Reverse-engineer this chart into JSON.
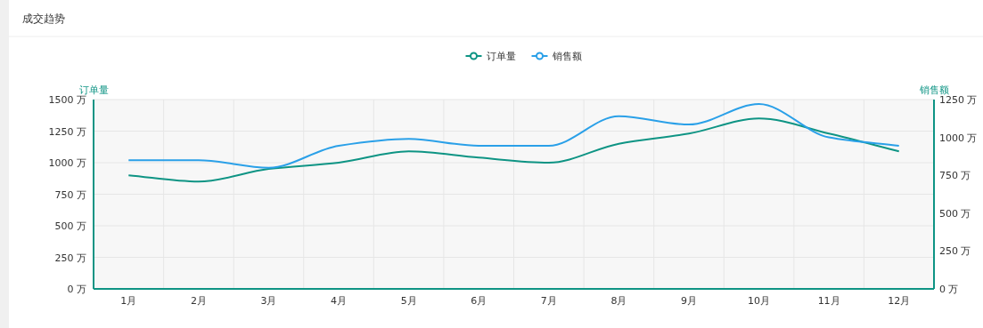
{
  "chart_data": {
    "type": "line",
    "title": "成交趋势",
    "categories": [
      "1月",
      "2月",
      "3月",
      "4月",
      "5月",
      "6月",
      "7月",
      "8月",
      "9月",
      "10月",
      "11月",
      "12月"
    ],
    "series": [
      {
        "name": "订单量",
        "color": "#0e9484",
        "values": [
          900,
          850,
          950,
          1000,
          1090,
          1040,
          1000,
          1150,
          1230,
          1350,
          1230,
          1090
        ]
      },
      {
        "name": "销售额",
        "color": "#2aa0e8",
        "axis": "y2",
        "values": [
          850,
          850,
          800,
          945,
          990,
          945,
          945,
          1140,
          1085,
          1220,
          1000,
          945
        ]
      }
    ],
    "ylabel": "订单量",
    "y2label": "销售额",
    "ylim": [
      0,
      1500
    ],
    "yticks": [
      {
        "value": 0,
        "label": "0 万"
      },
      {
        "value": 250,
        "label": "250 万"
      },
      {
        "value": 500,
        "label": "500 万"
      },
      {
        "value": 750,
        "label": "750 万"
      },
      {
        "value": 1000,
        "label": "1000 万"
      },
      {
        "value": 1250,
        "label": "1250 万"
      },
      {
        "value": 1500,
        "label": "1500 万"
      }
    ],
    "y2lim": [
      0,
      1250
    ],
    "y2ticks": [
      {
        "value": 0,
        "label": "0 万"
      },
      {
        "value": 250,
        "label": "250 万"
      },
      {
        "value": 500,
        "label": "500 万"
      },
      {
        "value": 750,
        "label": "750 万"
      },
      {
        "value": 1000,
        "label": "1000 万"
      },
      {
        "value": 1250,
        "label": "1250 万"
      }
    ],
    "grid": true,
    "legend": "top",
    "marker": "none",
    "line_style": "solid"
  }
}
